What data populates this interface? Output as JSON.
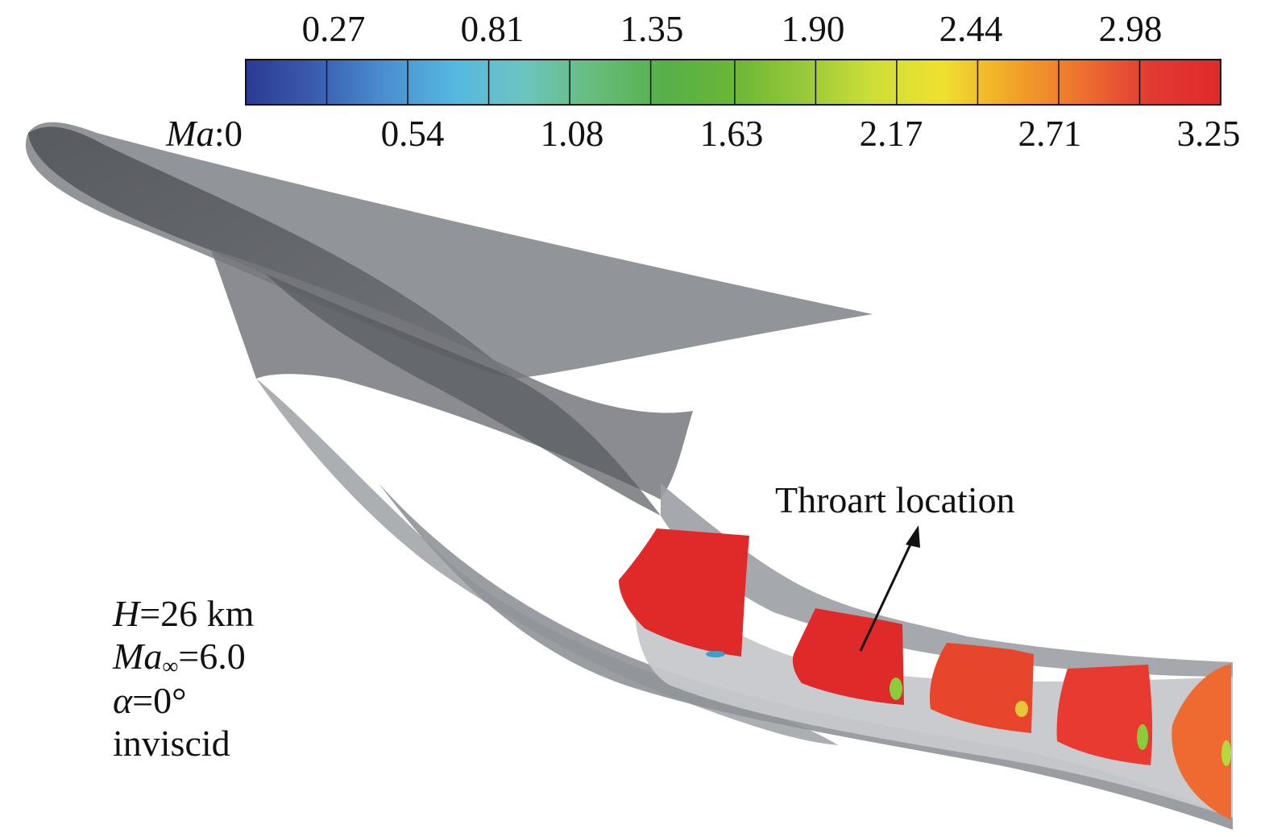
{
  "colorbar": {
    "variable_italic": "Ma",
    "separator": ":",
    "top_ticks": [
      "0.27",
      "0.81",
      "1.35",
      "1.90",
      "2.44",
      "2.98"
    ],
    "bottom_ticks": [
      "0",
      "0.54",
      "1.08",
      "1.63",
      "2.17",
      "2.71",
      "3.25"
    ],
    "min": 0,
    "max": 3.25,
    "colors": [
      "#2b3a94",
      "#3a5db0",
      "#4a8fd0",
      "#55b8e0",
      "#6cc4c0",
      "#68bd7c",
      "#56b04a",
      "#6ab636",
      "#98c83a",
      "#cede38",
      "#f0e030",
      "#f2a528",
      "#ee7030",
      "#e23a32",
      "#e02a2a"
    ]
  },
  "annotation": {
    "text": "Throart location"
  },
  "conditions": {
    "altitude_var": "H",
    "altitude_value": "=26 km",
    "mach_var": "Ma",
    "mach_sub": "∞",
    "mach_value": "=6.0",
    "alpha_var": "α",
    "alpha_value": "=0°",
    "flow_model": "inviscid"
  },
  "flow_colors": {
    "surface_dark": "#5a5d62",
    "surface_mid": "#7d8086",
    "surface_light": "#a8aaae",
    "contour_red": "#e02a2a",
    "contour_orange": "#ee6a30",
    "contour_green": "#8ccc3c"
  }
}
